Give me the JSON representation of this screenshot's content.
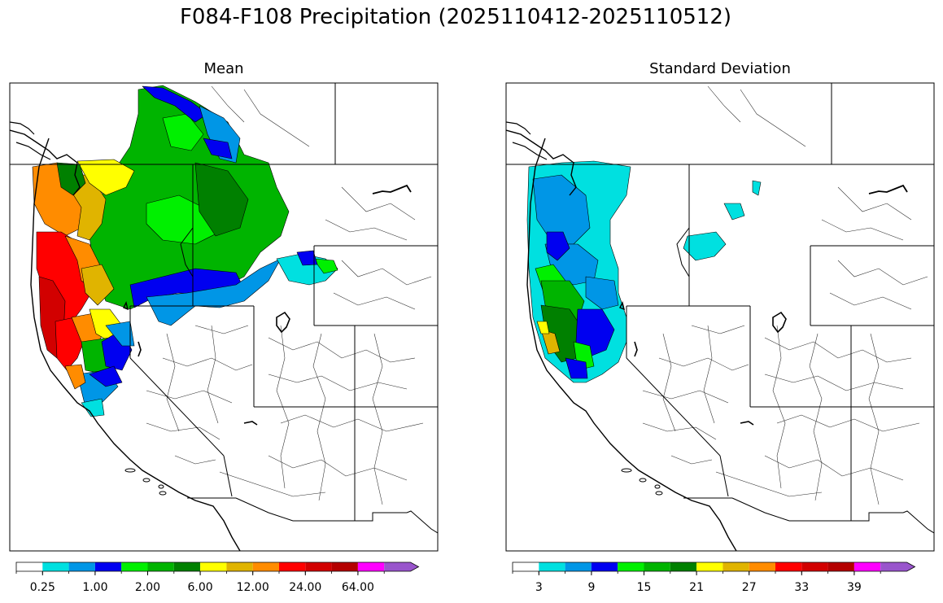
{
  "figure": {
    "title": "F084-F108 Precipitation (2025110412-2025110512)"
  },
  "panels": [
    {
      "title": "Mean",
      "colorbar": {
        "colors": [
          "#ffffff",
          "#00e0e0",
          "#0096e6",
          "#0000f0",
          "#00f000",
          "#00b400",
          "#008000",
          "#ffff00",
          "#e0b400",
          "#ff8c00",
          "#ff0000",
          "#d20000",
          "#b40000",
          "#ff00ff",
          "#9955cc"
        ],
        "tick_labels": [
          "0.25",
          "1.00",
          "2.00",
          "6.00",
          "12.00",
          "24.00",
          "64.00"
        ],
        "extend": "max"
      }
    },
    {
      "title": "Standard Deviation",
      "colorbar": {
        "colors": [
          "#ffffff",
          "#00e0e0",
          "#0096e6",
          "#0000f0",
          "#00f000",
          "#00b400",
          "#008000",
          "#ffff00",
          "#e0b400",
          "#ff8c00",
          "#ff0000",
          "#d20000",
          "#b40000",
          "#ff00ff",
          "#9955cc"
        ],
        "tick_labels": [
          "3",
          "9",
          "15",
          "21",
          "27",
          "33",
          "39"
        ],
        "extend": "max"
      }
    }
  ]
}
